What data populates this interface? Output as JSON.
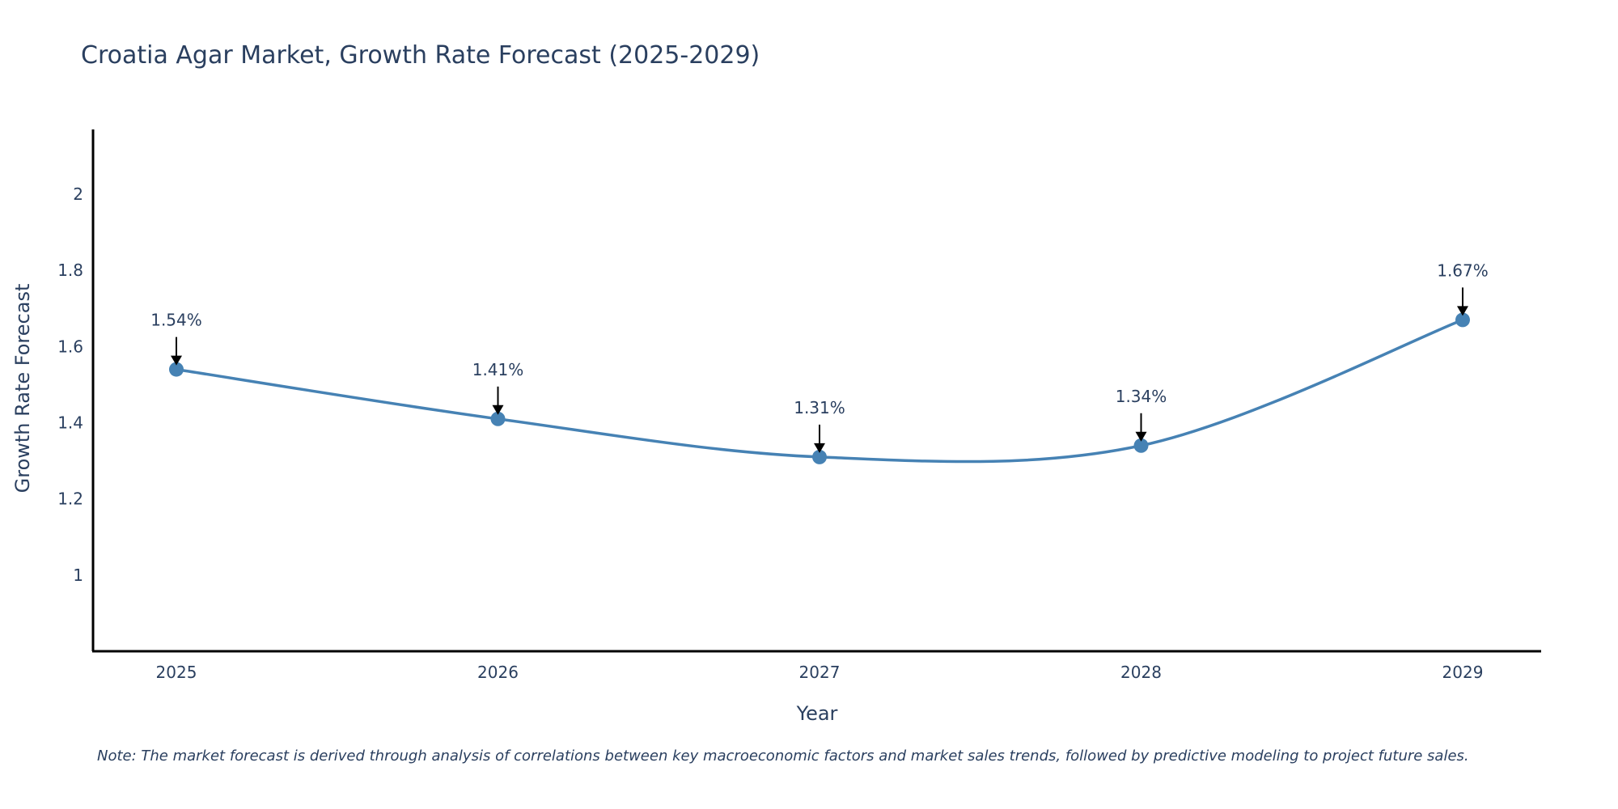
{
  "chart_data": {
    "type": "line",
    "title": "Croatia Agar Market, Growth Rate Forecast (2025-2029)",
    "xlabel": "Year",
    "ylabel": "Growth Rate Forecast",
    "categories": [
      "2025",
      "2026",
      "2027",
      "2028",
      "2029"
    ],
    "series": [
      {
        "name": "Growth Rate Forecast",
        "values": [
          1.54,
          1.41,
          1.31,
          1.34,
          1.67
        ],
        "labels": [
          "1.54%",
          "1.41%",
          "1.31%",
          "1.34%",
          "1.67%"
        ],
        "color": "#4682b4"
      }
    ],
    "ylim": [
      0.8,
      2.17
    ],
    "yticks": [
      1,
      1.2,
      1.4,
      1.6,
      1.8,
      2
    ],
    "ytick_labels": [
      "1",
      "1.2",
      "1.4",
      "1.6",
      "1.8",
      "2"
    ],
    "grid": false,
    "line_shape": "spline"
  },
  "note": "Note: The market forecast is derived through analysis of correlations between key macroeconomic factors and market sales trends, followed by predictive modeling to project future sales."
}
